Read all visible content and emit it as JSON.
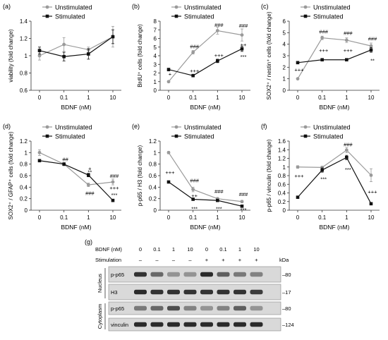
{
  "figure": {
    "panel_labels": [
      "(a)",
      "(b)",
      "(c)",
      "(d)",
      "(e)",
      "(f)",
      "(g)"
    ]
  },
  "colors": {
    "unstimulated": "#9a9a9a",
    "stimulated": "#111111",
    "axis": "#333333"
  },
  "chart_data": [
    {
      "type": "line",
      "panel": "(a)",
      "categories": [
        "0",
        "0.1",
        "1",
        "10"
      ],
      "xlabel": "BDNF (nM)",
      "ylabel": "viability (fold change)",
      "ylim": [
        0.6,
        1.4
      ],
      "yticks": [
        "0.6",
        "0.8",
        "1",
        "1.2",
        "1.4"
      ],
      "legend_position": "top",
      "series": [
        {
          "name": "Unstimulated",
          "values": [
            1.0,
            1.13,
            1.07,
            1.22
          ],
          "errors": [
            0.05,
            0.08,
            0.03,
            0.12
          ]
        },
        {
          "name": "Stimulated",
          "values": [
            1.06,
            0.99,
            1.02,
            1.22
          ],
          "errors": [
            0.04,
            0.05,
            0.06,
            0.08
          ]
        }
      ],
      "annotations": []
    },
    {
      "type": "line",
      "panel": "(b)",
      "categories": [
        "0",
        "0.1",
        "1",
        "10"
      ],
      "xlabel": "BDNF (nM)",
      "ylabel": "BrdU⁺ cells (fold change)",
      "ylim": [
        0,
        8
      ],
      "yticks": [
        "0",
        "1",
        "2",
        "3",
        "4",
        "5",
        "6",
        "7",
        "8"
      ],
      "legend_position": "top-left",
      "series": [
        {
          "name": "Unstimulated",
          "values": [
            1.0,
            4.4,
            6.9,
            6.4
          ],
          "errors": [
            0.1,
            0.2,
            0.4,
            0.7
          ]
        },
        {
          "name": "Stimulated",
          "values": [
            2.4,
            1.7,
            3.4,
            4.8
          ],
          "errors": [
            0.15,
            0.15,
            0.2,
            0.3
          ]
        }
      ],
      "annotations": [
        {
          "text": "+",
          "x": 0,
          "y": 1.9
        },
        {
          "text": "###",
          "x": 1,
          "y": 5.1
        },
        {
          "text": "+++",
          "x": 1,
          "y": 2.3
        },
        {
          "text": "###",
          "x": 2,
          "y": 7.6
        },
        {
          "text": "+++",
          "x": 2,
          "y": 4.1
        },
        {
          "text": "###",
          "x": 3,
          "y": 7.5
        },
        {
          "text": "++",
          "x": 3,
          "y": 5.3
        },
        {
          "text": "***",
          "x": 3,
          "y": 3.9
        }
      ]
    },
    {
      "type": "line",
      "panel": "(c)",
      "categories": [
        "0",
        "0.1",
        "1",
        "10"
      ],
      "xlabel": "BDNF (nM)",
      "ylabel": "SOX2⁺ / nestin⁺ cells (fold change)",
      "ylim": [
        0,
        6
      ],
      "yticks": [
        "0",
        "1",
        "2",
        "3",
        "4",
        "5",
        "6"
      ],
      "legend_position": "top",
      "series": [
        {
          "name": "Unstimulated",
          "values": [
            1.0,
            4.55,
            4.35,
            3.85
          ],
          "errors": [
            0.05,
            0.15,
            0.2,
            0.25
          ]
        },
        {
          "name": "Stimulated",
          "values": [
            2.4,
            2.65,
            2.65,
            3.5
          ],
          "errors": [
            0.1,
            0.1,
            0.1,
            0.2
          ]
        }
      ],
      "annotations": [
        {
          "text": "+++",
          "x": 0,
          "y": 1.8
        },
        {
          "text": "###",
          "x": 1,
          "y": 5.1
        },
        {
          "text": "+++",
          "x": 1,
          "y": 3.5
        },
        {
          "text": "###",
          "x": 2,
          "y": 5.0
        },
        {
          "text": "+++",
          "x": 2,
          "y": 3.5
        },
        {
          "text": "###",
          "x": 3,
          "y": 4.5
        },
        {
          "text": "**",
          "x": 3,
          "y": 2.6
        }
      ]
    },
    {
      "type": "line",
      "panel": "(d)",
      "categories": [
        "0",
        "0.1",
        "1",
        "10"
      ],
      "xlabel": "BDNF (nM)",
      "ylabel": "SOX2⁺ / GFAP⁺ cells (fold change)",
      "ylim": [
        0,
        1.2
      ],
      "yticks": [
        "0",
        "0.2",
        "0.4",
        "0.6",
        "0.8",
        "1",
        "1.2"
      ],
      "legend_position": "top",
      "series": [
        {
          "name": "Unstimulated",
          "values": [
            1.0,
            0.8,
            0.44,
            0.49
          ],
          "errors": [
            0.05,
            0.03,
            0.03,
            0.05
          ]
        },
        {
          "name": "Stimulated",
          "values": [
            0.86,
            0.8,
            0.61,
            0.17
          ],
          "errors": [
            0.02,
            0.02,
            0.03,
            0.02
          ]
        }
      ],
      "annotations": [
        {
          "text": "##",
          "x": 1,
          "y": 0.89
        },
        {
          "text": "+",
          "x": 2,
          "y": 0.73
        },
        {
          "text": "**",
          "x": 2,
          "y": 0.67
        },
        {
          "text": "###",
          "x": 2,
          "y": 0.3
        },
        {
          "text": "###",
          "x": 3,
          "y": 0.6
        },
        {
          "text": "+++",
          "x": 3,
          "y": 0.39
        },
        {
          "text": "***",
          "x": 3,
          "y": 0.27
        }
      ]
    },
    {
      "type": "line",
      "panel": "(e)",
      "categories": [
        "0",
        "0.1",
        "1",
        "10"
      ],
      "xlabel": "BDNF (nM)",
      "ylabel": "p-p65 / H3 (fold change)",
      "ylim": [
        0,
        1.2
      ],
      "yticks": [
        "0",
        "0.2",
        "0.4",
        "0.6",
        "0.8",
        "1",
        "1.2"
      ],
      "legend_position": "top",
      "series": [
        {
          "name": "Unstimulated",
          "values": [
            1.0,
            0.36,
            0.2,
            0.15
          ],
          "errors": [
            0.02,
            0.04,
            0.02,
            0.02
          ]
        },
        {
          "name": "Stimulated",
          "values": [
            0.49,
            0.19,
            0.17,
            0.07
          ],
          "errors": [
            0.02,
            0.02,
            0.02,
            0.01
          ]
        }
      ],
      "annotations": [
        {
          "text": "+++",
          "x": 0,
          "y": 0.66
        },
        {
          "text": "###",
          "x": 1,
          "y": 0.52
        },
        {
          "text": "++",
          "x": 1,
          "y": 0.26
        },
        {
          "text": "***",
          "x": 1,
          "y": 0.03
        },
        {
          "text": "###",
          "x": 2,
          "y": 0.33
        },
        {
          "text": "***",
          "x": 2,
          "y": 0.03
        },
        {
          "text": "###",
          "x": 3,
          "y": 0.28
        },
        {
          "text": "***",
          "x": 3,
          "y": 0.01
        }
      ]
    },
    {
      "type": "line",
      "panel": "(f)",
      "categories": [
        "0",
        "0.1",
        "1",
        "10"
      ],
      "xlabel": "BDNF (nM)",
      "ylabel": "p-p65 / vinculin (fold change)",
      "ylim": [
        0,
        1.6
      ],
      "yticks": [
        "0",
        "0.2",
        "0.4",
        "0.6",
        "0.8",
        "1",
        "1.2",
        "1.4",
        "1.6"
      ],
      "legend_position": "top",
      "series": [
        {
          "name": "Unstimulated",
          "values": [
            1.0,
            0.99,
            1.39,
            0.81
          ],
          "errors": [
            0.03,
            0.03,
            0.06,
            0.15
          ]
        },
        {
          "name": "Stimulated",
          "values": [
            0.3,
            0.93,
            1.22,
            0.15
          ],
          "errors": [
            0.02,
            0.05,
            0.05,
            0.02
          ]
        }
      ],
      "annotations": [
        {
          "text": "+++",
          "x": 0,
          "y": 0.8
        },
        {
          "text": "***",
          "x": 1,
          "y": 0.73
        },
        {
          "text": "###",
          "x": 2,
          "y": 1.53
        },
        {
          "text": "***",
          "x": 2,
          "y": 0.95
        },
        {
          "text": "+++",
          "x": 3,
          "y": 0.43
        }
      ]
    }
  ],
  "blot": {
    "bdnf_label": "BDNF (nM)",
    "bdnf_values": [
      "0",
      "0.1",
      "1",
      "10",
      "0",
      "0.1",
      "1",
      "10"
    ],
    "stimulation_label": "Stimulation",
    "stimulation_values": [
      "–",
      "–",
      "–",
      "–",
      "+",
      "+",
      "+",
      "+"
    ],
    "kda_label": "kDa",
    "fractions": [
      {
        "name": "Nucleus",
        "rows": [
          {
            "label": "p-p65",
            "kda": "80",
            "intensities": [
              0.85,
              0.55,
              0.3,
              0.3,
              0.9,
              0.6,
              0.45,
              0.4
            ]
          },
          {
            "label": "H3",
            "kda": "17",
            "intensities": [
              0.9,
              0.85,
              0.85,
              0.85,
              0.85,
              0.85,
              0.85,
              0.8
            ]
          }
        ]
      },
      {
        "name": "Cytoplasm",
        "rows": [
          {
            "label": "p-p65",
            "kda": "80",
            "intensities": [
              0.45,
              0.55,
              0.7,
              0.4,
              0.3,
              0.4,
              0.6,
              0.3
            ]
          },
          {
            "label": "vinculin",
            "kda": "124",
            "intensities": [
              0.9,
              0.9,
              0.9,
              0.9,
              0.9,
              0.9,
              0.9,
              0.9
            ]
          }
        ]
      }
    ]
  }
}
